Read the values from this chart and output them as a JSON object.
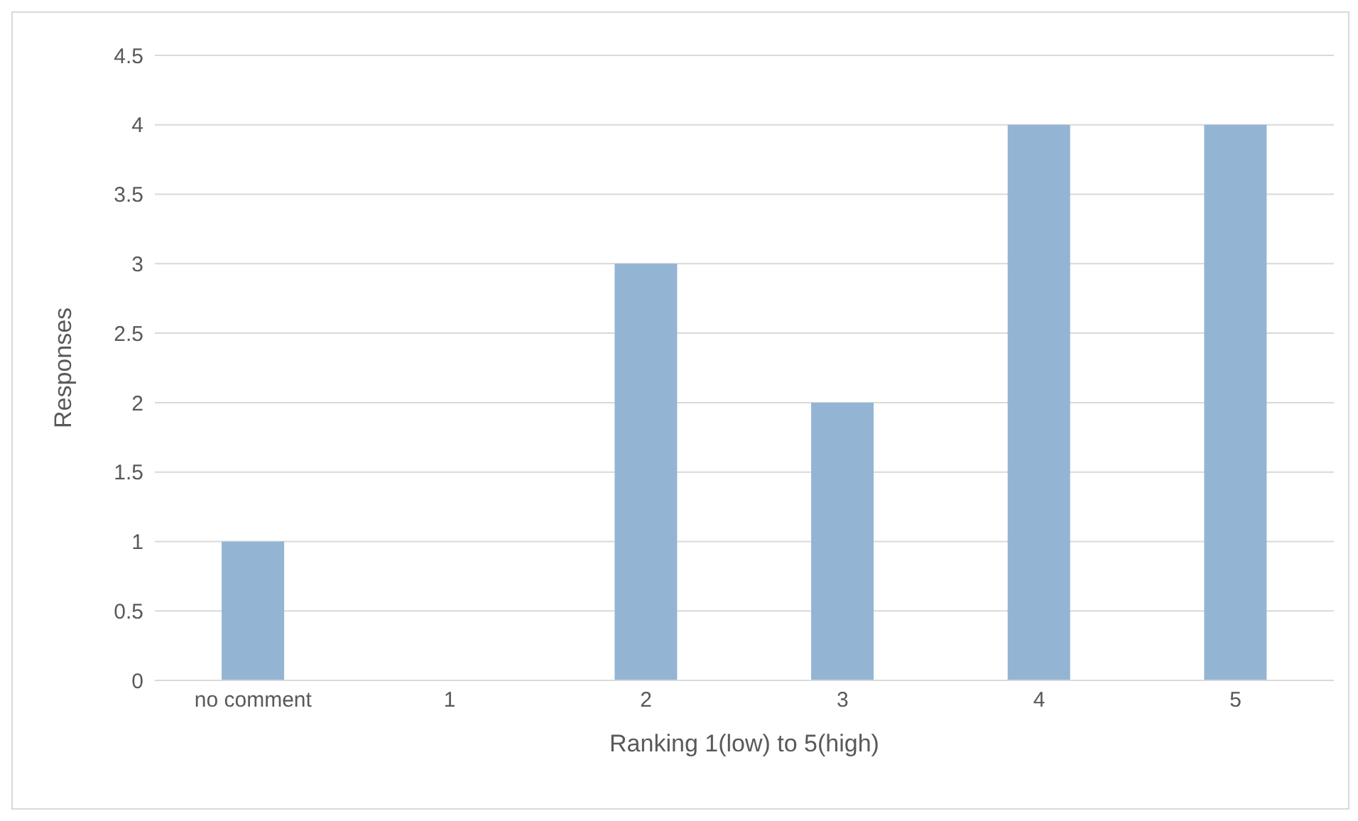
{
  "chart_data": {
    "type": "bar",
    "xlabel": "Ranking 1(low) to 5(high)",
    "ylabel": "Responses",
    "categories": [
      "no comment",
      "1",
      "2",
      "3",
      "4",
      "5"
    ],
    "values": [
      1,
      0,
      3,
      2,
      4,
      4
    ],
    "color": "#93b5d3",
    "ylim": [
      0,
      4.5
    ],
    "yticks": [
      0,
      0.5,
      1,
      1.5,
      2,
      2.5,
      3,
      3.5,
      4,
      4.5
    ],
    "grid": "y",
    "legend": false
  }
}
